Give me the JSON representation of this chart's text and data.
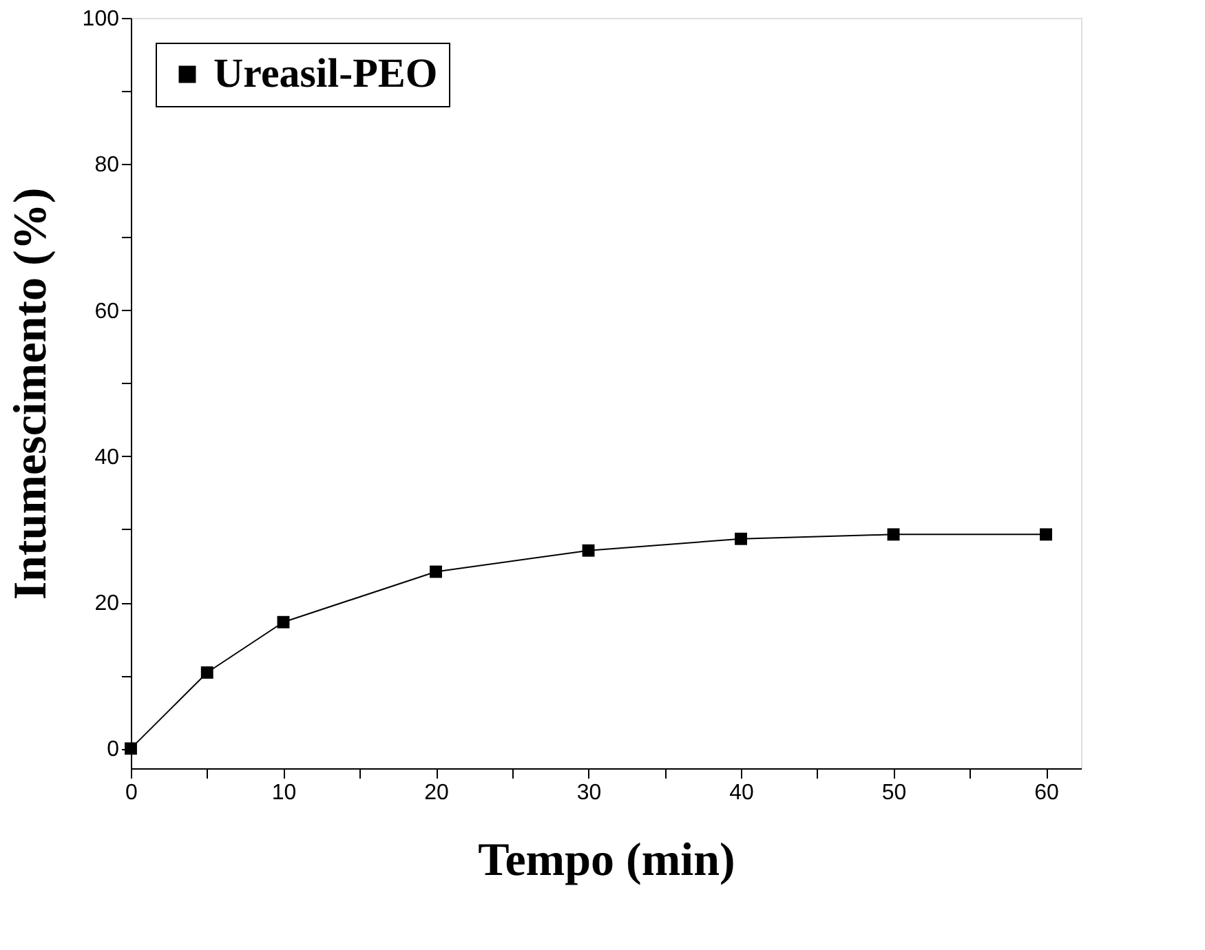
{
  "chart_data": {
    "type": "line",
    "xlabel": "Tempo (min)",
    "ylabel": "Intumescimento (%)",
    "x": [
      0,
      5,
      10,
      20,
      30,
      40,
      50,
      60
    ],
    "series": [
      {
        "name": "Ureasil-PEO",
        "color": "#000000",
        "values": [
          0,
          10.4,
          17.3,
          24.2,
          27.1,
          28.7,
          29.3,
          29.3
        ]
      }
    ],
    "xlim": [
      0,
      62.3
    ],
    "ylim": [
      -2.7,
      100
    ],
    "xticks": [
      0,
      {
        "value": 5,
        "label": null
      },
      10,
      {
        "value": 15,
        "label": null
      },
      20,
      {
        "value": 25,
        "label": null
      },
      30,
      {
        "value": 35,
        "label": null
      },
      40,
      {
        "value": 45,
        "label": null
      },
      50,
      {
        "value": 55,
        "label": null
      },
      60
    ],
    "yticks": [
      0,
      {
        "value": 10,
        "label": null
      },
      20,
      {
        "value": 30,
        "label": null
      },
      40,
      {
        "value": 50,
        "label": null
      },
      60,
      {
        "value": 70,
        "label": null
      },
      80,
      {
        "value": 90,
        "label": null
      },
      100
    ],
    "marker": "square",
    "line_style": "solid",
    "legend": "top left",
    "grid": false
  }
}
